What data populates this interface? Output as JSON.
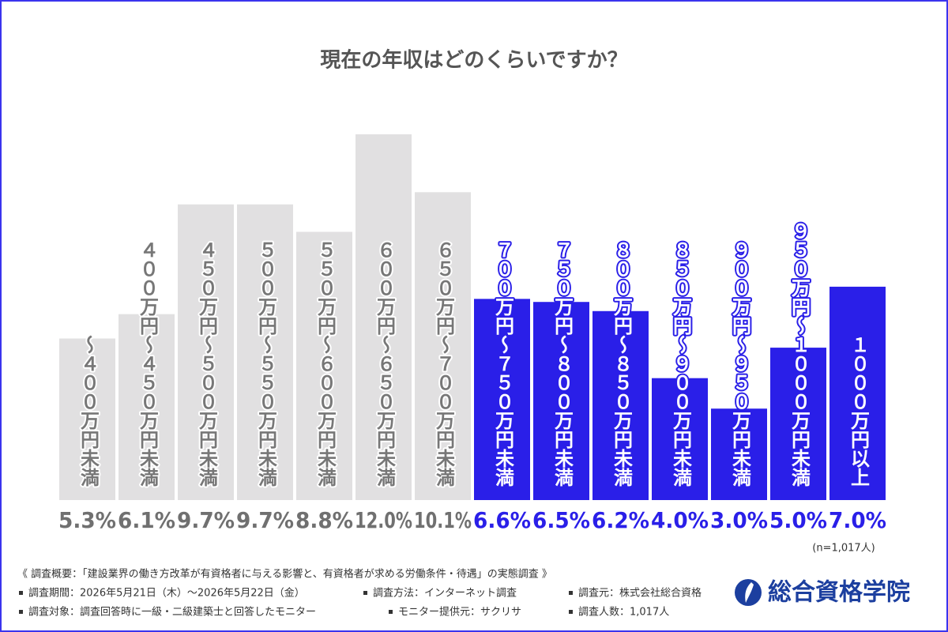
{
  "chart_data": {
    "type": "bar",
    "title": "現在の年収はどのくらいですか？",
    "categories": [
      "～４００万円未満",
      "４００万円～４５０万円未満",
      "４５０万円～５００万円未満",
      "５００万円～５５０万円未満",
      "５５０万円～６００万円未満",
      "６００万円～６５０万円未満",
      "６５０万円～７００万円未満",
      "７００万円～７５０万円未満",
      "７５０万円～８００万円未満",
      "８００万円～８５０万円未満",
      "８５０万円～９００万円未満",
      "９００万円～９５０万円未満",
      "９５０万円～１０００万円未満",
      "１０００万円以上"
    ],
    "values": [
      5.3,
      6.1,
      9.7,
      9.7,
      8.8,
      12.0,
      10.1,
      6.6,
      6.5,
      6.2,
      4.0,
      3.0,
      5.0,
      7.0
    ],
    "value_labels": [
      "5.3%",
      "6.1%",
      "9.7%",
      "9.7%",
      "8.8%",
      "12.0%",
      "10.1%",
      "6.6%",
      "6.5%",
      "6.2%",
      "4.0%",
      "3.0%",
      "5.0%",
      "7.0%"
    ],
    "colors": [
      "#e1e0e1",
      "#e1e0e1",
      "#e1e0e1",
      "#e1e0e1",
      "#e1e0e1",
      "#e1e0e1",
      "#e1e0e1",
      "#2a1fe8",
      "#2a1fe8",
      "#2a1fe8",
      "#2a1fe8",
      "#2a1fe8",
      "#2a1fe8",
      "#2a1fe8"
    ],
    "value_label_colors": [
      "#707070",
      "#707070",
      "#707070",
      "#707070",
      "#707070",
      "#707070",
      "#707070",
      "#2a1fe8",
      "#2a1fe8",
      "#2a1fe8",
      "#2a1fe8",
      "#2a1fe8",
      "#2a1fe8",
      "#2a1fe8"
    ],
    "category_label_colors": [
      "#777777",
      "#777777",
      "#777777",
      "#777777",
      "#777777",
      "#777777",
      "#777777",
      "#ffffff",
      "#ffffff",
      "#ffffff",
      "#ffffff",
      "#ffffff",
      "#ffffff",
      "#ffffff"
    ],
    "note": "(n=1,017人)"
  },
  "footer": {
    "heading": "《 調査概要：「建設業界の働き方改革が有資格者に与える影響と、有資格者が求める労働条件・待遇」の実態調査 》",
    "items": [
      "調査期間：2026年5月21日（木）～2026年5月22日（金）",
      "調査方法：インターネット調査",
      "調査元：株式会社総合資格",
      "調査対象：調査回答時に一級・二級建築士と回答したモニター",
      "モニター提供元：サクリサ",
      "調査人数：1,017人"
    ]
  },
  "logo": {
    "text": "総合資格学院"
  }
}
